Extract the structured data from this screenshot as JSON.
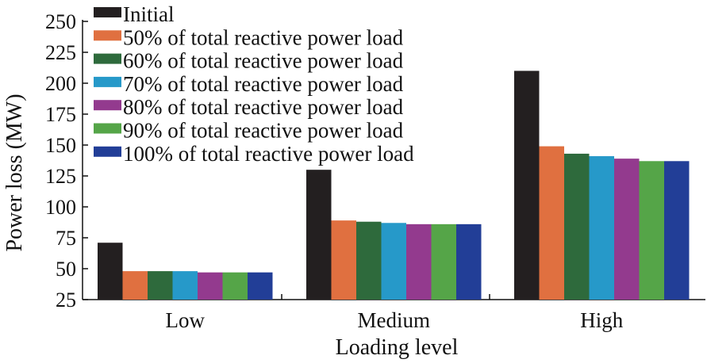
{
  "chart_data": {
    "type": "bar",
    "title": "",
    "xlabel": "Loading level",
    "ylabel": "Power loss (MW)",
    "ylim": [
      25,
      250
    ],
    "yticks": [
      25,
      50,
      75,
      100,
      125,
      150,
      175,
      200,
      225,
      250
    ],
    "grid": false,
    "legend_position": "top-left",
    "categories": [
      "Low",
      "Medium",
      "High"
    ],
    "series": [
      {
        "name": "Initial",
        "color": "#231f20",
        "values": [
          71,
          130,
          210
        ]
      },
      {
        "name": "50% of total reactive power load",
        "color": "#e07040",
        "values": [
          48,
          89,
          149
        ]
      },
      {
        "name": "60% of total reactive power load",
        "color": "#2e6a3c",
        "values": [
          48,
          88,
          143
        ]
      },
      {
        "name": "70% of total reactive power load",
        "color": "#2699c9",
        "values": [
          48,
          87,
          141
        ]
      },
      {
        "name": "80% of total reactive power load",
        "color": "#933a8e",
        "values": [
          47,
          86,
          139
        ]
      },
      {
        "name": "90% of total reactive power load",
        "color": "#55a548",
        "values": [
          47,
          86,
          137
        ]
      },
      {
        "name": "100% of total reactive power load",
        "color": "#223e97",
        "values": [
          47,
          86,
          137
        ]
      }
    ]
  }
}
